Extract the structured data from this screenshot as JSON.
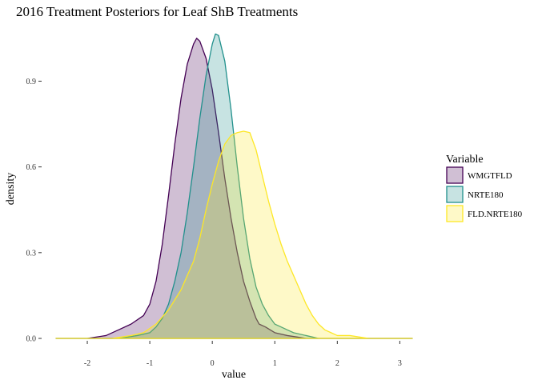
{
  "chart_data": {
    "type": "area",
    "title": "2016 Treatment Posteriors for Leaf ShB Treatments",
    "xlabel": "value",
    "ylabel": "density",
    "xlim": [
      -2.5,
      3.2
    ],
    "ylim": [
      0,
      1.1
    ],
    "x_ticks": [
      -2,
      -1,
      0,
      1,
      2,
      3
    ],
    "y_ticks": [
      0.0,
      0.3,
      0.6,
      0.9
    ],
    "x_tick_labels": [
      "-2",
      "-1",
      "0",
      "1",
      "2",
      "3"
    ],
    "y_tick_labels": [
      "0.0",
      "0.3",
      "0.6",
      "0.9"
    ],
    "grid": false,
    "legend": {
      "title": "Variable",
      "position": "right"
    },
    "series": [
      {
        "name": "WMGTFLD",
        "color": "#440154",
        "points": [
          [
            -2.5,
            0
          ],
          [
            -2.0,
            0.0
          ],
          [
            -1.7,
            0.01
          ],
          [
            -1.5,
            0.03
          ],
          [
            -1.3,
            0.05
          ],
          [
            -1.1,
            0.08
          ],
          [
            -1.0,
            0.12
          ],
          [
            -0.9,
            0.2
          ],
          [
            -0.8,
            0.33
          ],
          [
            -0.7,
            0.5
          ],
          [
            -0.6,
            0.68
          ],
          [
            -0.5,
            0.84
          ],
          [
            -0.4,
            0.96
          ],
          [
            -0.3,
            1.03
          ],
          [
            -0.25,
            1.05
          ],
          [
            -0.2,
            1.04
          ],
          [
            -0.1,
            0.98
          ],
          [
            0.0,
            0.87
          ],
          [
            0.1,
            0.72
          ],
          [
            0.2,
            0.56
          ],
          [
            0.3,
            0.42
          ],
          [
            0.4,
            0.3
          ],
          [
            0.5,
            0.2
          ],
          [
            0.6,
            0.13
          ],
          [
            0.7,
            0.07
          ],
          [
            0.75,
            0.05
          ],
          [
            0.85,
            0.04
          ],
          [
            1.0,
            0.02
          ],
          [
            1.2,
            0.01
          ],
          [
            1.5,
            0.0
          ],
          [
            3.2,
            0
          ]
        ]
      },
      {
        "name": "NRTE180",
        "color": "#21908C",
        "points": [
          [
            -2.5,
            0
          ],
          [
            -1.5,
            0.0
          ],
          [
            -1.2,
            0.01
          ],
          [
            -1.0,
            0.02
          ],
          [
            -0.9,
            0.04
          ],
          [
            -0.8,
            0.07
          ],
          [
            -0.7,
            0.12
          ],
          [
            -0.6,
            0.2
          ],
          [
            -0.5,
            0.3
          ],
          [
            -0.4,
            0.44
          ],
          [
            -0.3,
            0.6
          ],
          [
            -0.2,
            0.77
          ],
          [
            -0.1,
            0.92
          ],
          [
            0.0,
            1.03
          ],
          [
            0.05,
            1.065
          ],
          [
            0.1,
            1.06
          ],
          [
            0.2,
            0.97
          ],
          [
            0.3,
            0.8
          ],
          [
            0.4,
            0.6
          ],
          [
            0.5,
            0.42
          ],
          [
            0.6,
            0.28
          ],
          [
            0.7,
            0.18
          ],
          [
            0.8,
            0.12
          ],
          [
            0.9,
            0.08
          ],
          [
            1.0,
            0.05
          ],
          [
            1.1,
            0.04
          ],
          [
            1.2,
            0.03
          ],
          [
            1.3,
            0.02
          ],
          [
            1.5,
            0.01
          ],
          [
            1.7,
            0.0
          ],
          [
            3.2,
            0
          ]
        ]
      },
      {
        "name": "FLD.NRTE180",
        "color": "#FDE725",
        "points": [
          [
            -2.5,
            0
          ],
          [
            -1.6,
            0.0
          ],
          [
            -1.3,
            0.01
          ],
          [
            -1.1,
            0.02
          ],
          [
            -0.9,
            0.05
          ],
          [
            -0.7,
            0.1
          ],
          [
            -0.5,
            0.17
          ],
          [
            -0.3,
            0.27
          ],
          [
            -0.2,
            0.35
          ],
          [
            -0.1,
            0.45
          ],
          [
            0.0,
            0.54
          ],
          [
            0.1,
            0.62
          ],
          [
            0.2,
            0.68
          ],
          [
            0.3,
            0.71
          ],
          [
            0.4,
            0.72
          ],
          [
            0.5,
            0.725
          ],
          [
            0.6,
            0.72
          ],
          [
            0.7,
            0.66
          ],
          [
            0.8,
            0.57
          ],
          [
            0.9,
            0.48
          ],
          [
            1.0,
            0.4
          ],
          [
            1.1,
            0.33
          ],
          [
            1.2,
            0.27
          ],
          [
            1.3,
            0.22
          ],
          [
            1.4,
            0.17
          ],
          [
            1.5,
            0.12
          ],
          [
            1.6,
            0.08
          ],
          [
            1.7,
            0.05
          ],
          [
            1.8,
            0.03
          ],
          [
            1.9,
            0.02
          ],
          [
            2.0,
            0.01
          ],
          [
            2.2,
            0.01
          ],
          [
            2.5,
            0.0
          ],
          [
            3.2,
            0
          ]
        ]
      }
    ]
  }
}
